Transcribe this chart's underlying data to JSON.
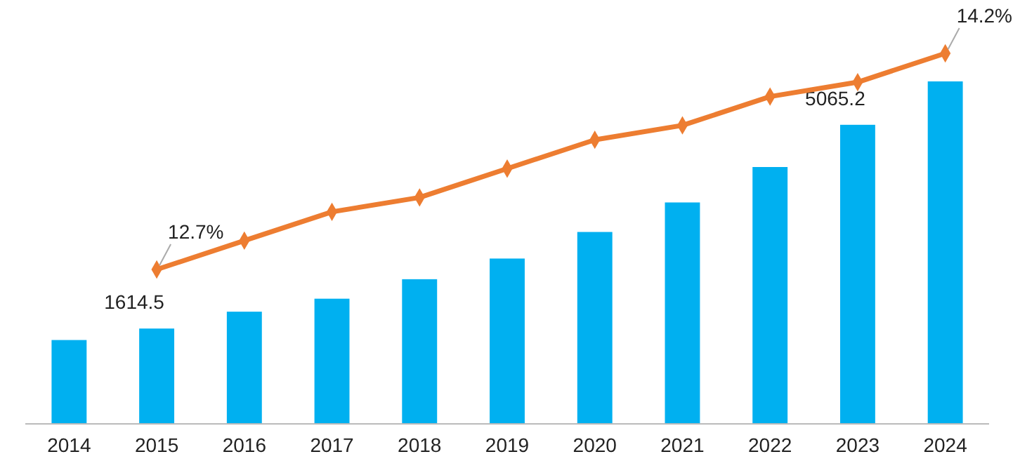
{
  "chart_data": {
    "type": "bar",
    "categories": [
      "2014",
      "2015",
      "2016",
      "2017",
      "2018",
      "2019",
      "2020",
      "2021",
      "2022",
      "2023",
      "2024"
    ],
    "series": [
      {
        "color": "#00b0f0",
        "values": [
          1420,
          1614.5,
          1900,
          2120,
          2450,
          2800,
          3250,
          3750,
          4350,
          5065.2,
          5800
        ],
        "value_labels": [
          null,
          "1614.5",
          null,
          null,
          null,
          null,
          null,
          null,
          null,
          "5065.2",
          null
        ]
      },
      {
        "type": "line",
        "axis": "y2",
        "color": "#ed7d31",
        "marker": "diamond",
        "values": [
          null,
          12.7,
          12.9,
          13.1,
          13.2,
          13.4,
          13.6,
          13.7,
          13.9,
          14.0,
          14.2
        ],
        "value_labels": [
          null,
          "12.7%",
          null,
          null,
          null,
          null,
          null,
          null,
          null,
          null,
          "14.2%"
        ]
      }
    ],
    "grid": false,
    "tick_labels": "x"
  }
}
